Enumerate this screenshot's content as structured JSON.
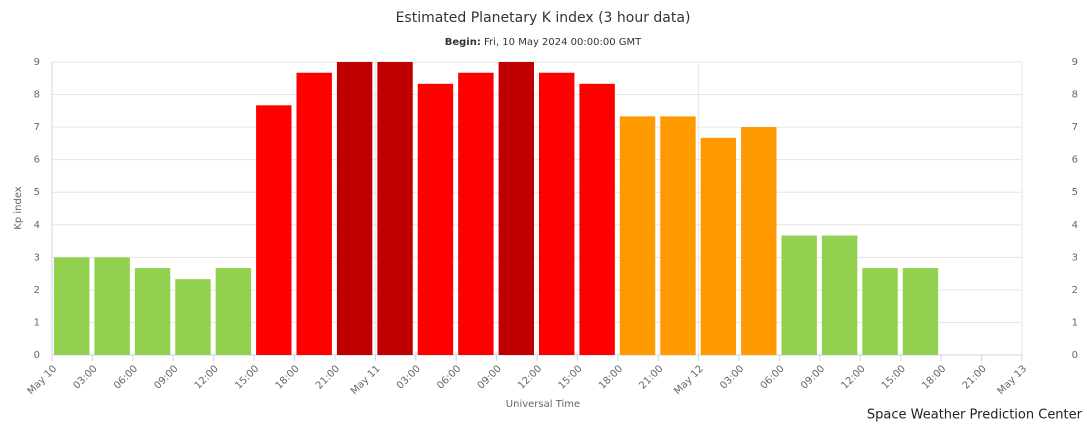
{
  "chart_data": {
    "type": "bar",
    "title": "Estimated Planetary K index (3 hour data)",
    "subtitle_label": "Begin:",
    "subtitle": "Fri, 10 May 2024 00:00:00 GMT",
    "y_label": "Kp index",
    "x_label": "Universal Time",
    "credit": "Space Weather Prediction Center",
    "xtick_labels": [
      "May 10",
      "03:00",
      "06:00",
      "09:00",
      "12:00",
      "15:00",
      "18:00",
      "21:00",
      "May 11",
      "03:00",
      "06:00",
      "09:00",
      "12:00",
      "15:00",
      "18:00",
      "21:00",
      "May 12",
      "03:00",
      "06:00",
      "09:00",
      "12:00",
      "15:00",
      "18:00",
      "21:00",
      "May 13"
    ],
    "values": [
      3,
      3,
      2.67,
      2.33,
      2.67,
      7.67,
      8.67,
      9,
      9,
      8.33,
      8.67,
      9,
      8.67,
      8.33,
      7.33,
      7.33,
      6.67,
      7,
      3.67,
      3.67,
      2.67,
      2.67
    ],
    "colors": [
      "#92d050",
      "#92d050",
      "#92d050",
      "#92d050",
      "#92d050",
      "#ff0000",
      "#ff0000",
      "#c00000",
      "#c00000",
      "#ff0000",
      "#ff0000",
      "#c00000",
      "#ff0000",
      "#ff0000",
      "#ff9900",
      "#ff9900",
      "#ff9900",
      "#ff9900",
      "#92d050",
      "#92d050",
      "#92d050",
      "#92d050"
    ],
    "ylim": [
      0,
      9
    ],
    "yticks": [
      0,
      1,
      2,
      3,
      4,
      5,
      6,
      7,
      8,
      9
    ],
    "y2lim": [
      0,
      9
    ],
    "y2ticks": [
      0,
      1,
      2,
      3,
      4,
      5,
      6,
      7,
      8,
      9
    ],
    "grid": true
  }
}
